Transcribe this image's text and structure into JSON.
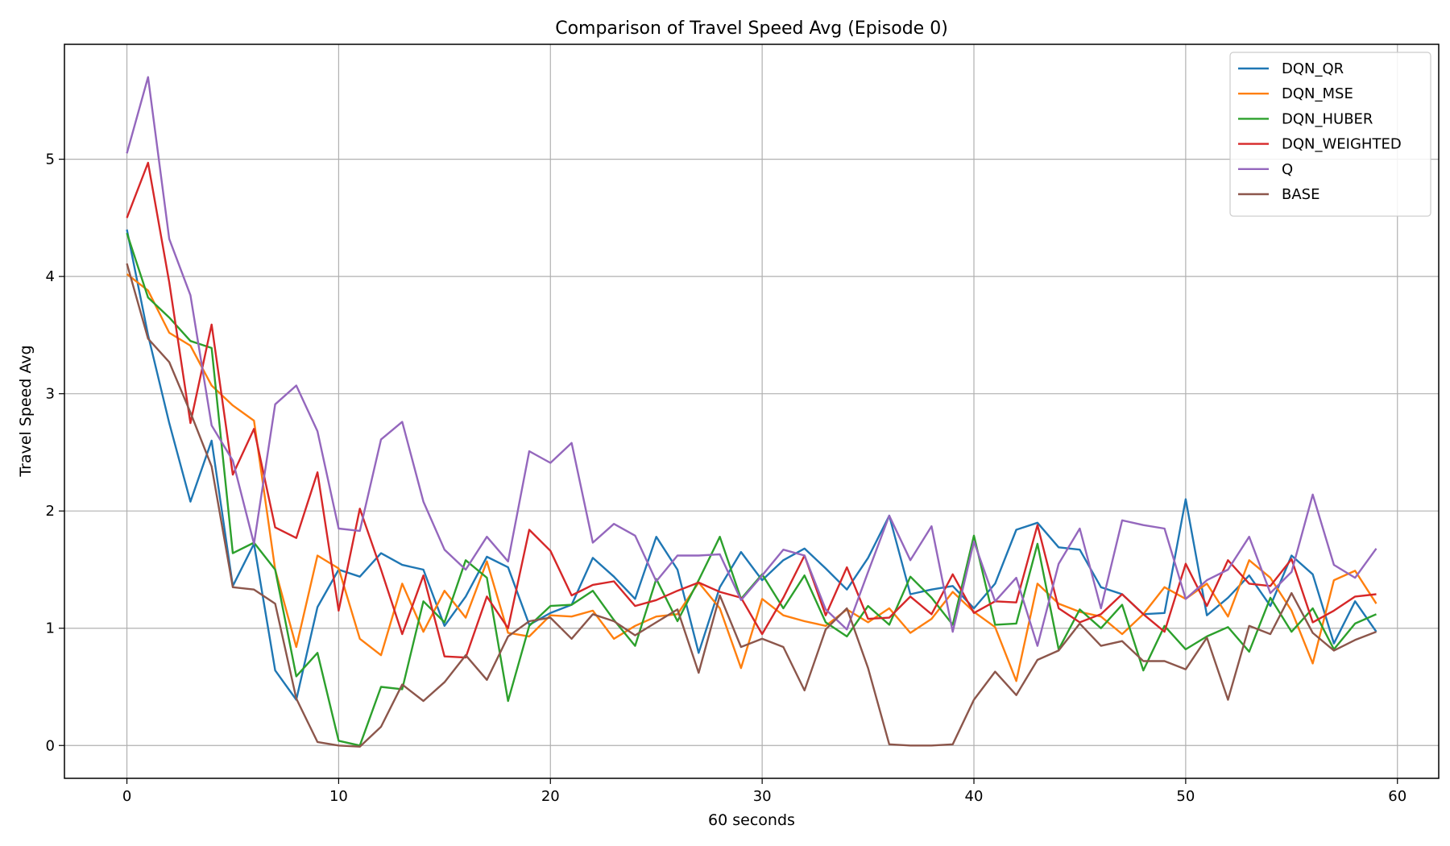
{
  "chart_data": {
    "type": "line",
    "title": "Comparison of Travel Speed Avg (Episode 0)",
    "xlabel": "60 seconds",
    "ylabel": "Travel Speed Avg",
    "xlim": [
      -2.95,
      61.95
    ],
    "ylim": [
      -0.28,
      5.98
    ],
    "xticks": [
      0,
      10,
      20,
      30,
      40,
      50,
      60
    ],
    "yticks": [
      0,
      1,
      2,
      3,
      4,
      5
    ],
    "grid": true,
    "legend_position": "top-right",
    "x": [
      0,
      1,
      2,
      3,
      4,
      5,
      6,
      7,
      8,
      9,
      10,
      11,
      12,
      13,
      14,
      15,
      16,
      17,
      18,
      19,
      20,
      21,
      22,
      23,
      24,
      25,
      26,
      27,
      28,
      29,
      30,
      31,
      32,
      33,
      34,
      35,
      36,
      37,
      38,
      39,
      40,
      41,
      42,
      43,
      44,
      45,
      46,
      47,
      48,
      49,
      50,
      51,
      52,
      53,
      54,
      55,
      56,
      57,
      58,
      59
    ],
    "series": [
      {
        "name": "DQN_QR",
        "color": "#1f77b4",
        "values": [
          4.4,
          3.5,
          2.75,
          2.08,
          2.6,
          1.36,
          1.72,
          0.64,
          0.39,
          1.18,
          1.5,
          1.44,
          1.64,
          1.54,
          1.5,
          1.02,
          1.27,
          1.61,
          1.52,
          1.03,
          1.13,
          1.2,
          1.6,
          1.44,
          1.25,
          1.78,
          1.5,
          0.79,
          1.35,
          1.65,
          1.41,
          1.58,
          1.68,
          1.51,
          1.33,
          1.6,
          1.96,
          1.29,
          1.33,
          1.36,
          1.17,
          1.38,
          1.84,
          1.9,
          1.69,
          1.67,
          1.35,
          1.29,
          1.12,
          1.13,
          2.1,
          1.11,
          1.26,
          1.45,
          1.19,
          1.62,
          1.46,
          0.87,
          1.23,
          0.97
        ]
      },
      {
        "name": "DQN_MSE",
        "color": "#ff7f0e",
        "values": [
          4.02,
          3.88,
          3.52,
          3.41,
          3.07,
          2.9,
          2.77,
          1.5,
          0.84,
          1.62,
          1.51,
          0.91,
          0.77,
          1.38,
          0.97,
          1.32,
          1.09,
          1.57,
          0.96,
          0.93,
          1.11,
          1.1,
          1.15,
          0.91,
          1.02,
          1.1,
          1.12,
          1.39,
          1.17,
          0.66,
          1.25,
          1.11,
          1.06,
          1.02,
          1.16,
          1.05,
          1.17,
          0.96,
          1.08,
          1.31,
          1.14,
          1.01,
          0.55,
          1.38,
          1.21,
          1.14,
          1.1,
          0.95,
          1.12,
          1.35,
          1.25,
          1.38,
          1.1,
          1.58,
          1.43,
          1.15,
          0.7,
          1.41,
          1.49,
          1.21
        ]
      },
      {
        "name": "DQN_HUBER",
        "color": "#2ca02c",
        "values": [
          4.37,
          3.82,
          3.65,
          3.45,
          3.39,
          1.64,
          1.73,
          1.5,
          0.59,
          0.79,
          0.04,
          0.0,
          0.5,
          0.48,
          1.23,
          1.05,
          1.58,
          1.43,
          0.38,
          1.02,
          1.19,
          1.2,
          1.32,
          1.07,
          0.85,
          1.42,
          1.06,
          1.41,
          1.78,
          1.25,
          1.46,
          1.17,
          1.45,
          1.05,
          0.93,
          1.19,
          1.03,
          1.44,
          1.26,
          1.03,
          1.79,
          1.03,
          1.04,
          1.72,
          0.82,
          1.16,
          1.0,
          1.2,
          0.64,
          1.02,
          0.82,
          0.93,
          1.01,
          0.8,
          1.26,
          0.97,
          1.17,
          0.82,
          1.04,
          1.12
        ]
      },
      {
        "name": "DQN_WEIGHTED",
        "color": "#d62728",
        "values": [
          4.5,
          4.97,
          3.95,
          2.75,
          3.59,
          2.31,
          2.7,
          1.86,
          1.77,
          2.33,
          1.15,
          2.02,
          1.5,
          0.95,
          1.45,
          0.76,
          0.75,
          1.27,
          1.0,
          1.84,
          1.66,
          1.28,
          1.37,
          1.4,
          1.19,
          1.24,
          1.32,
          1.39,
          1.31,
          1.26,
          0.95,
          1.26,
          1.62,
          1.11,
          1.52,
          1.08,
          1.09,
          1.27,
          1.12,
          1.46,
          1.13,
          1.23,
          1.22,
          1.88,
          1.17,
          1.05,
          1.12,
          1.29,
          1.12,
          0.97,
          1.55,
          1.19,
          1.58,
          1.38,
          1.36,
          1.59,
          1.05,
          1.15,
          1.27,
          1.29
        ]
      },
      {
        "name": "Q",
        "color": "#9467bd",
        "values": [
          5.05,
          5.7,
          4.32,
          3.84,
          2.73,
          2.43,
          1.72,
          2.91,
          3.07,
          2.68,
          1.85,
          1.83,
          2.61,
          2.76,
          2.08,
          1.67,
          1.5,
          1.78,
          1.57,
          2.51,
          2.41,
          2.58,
          1.73,
          1.89,
          1.79,
          1.4,
          1.62,
          1.62,
          1.63,
          1.24,
          1.45,
          1.67,
          1.62,
          1.16,
          0.99,
          1.48,
          1.96,
          1.58,
          1.87,
          0.97,
          1.74,
          1.23,
          1.43,
          0.85,
          1.55,
          1.85,
          1.17,
          1.92,
          1.88,
          1.85,
          1.25,
          1.41,
          1.5,
          1.78,
          1.3,
          1.48,
          2.14,
          1.54,
          1.43,
          1.68
        ]
      },
      {
        "name": "BASE",
        "color": "#8c564b",
        "values": [
          4.11,
          3.47,
          3.27,
          2.84,
          2.38,
          1.35,
          1.33,
          1.21,
          0.4,
          0.03,
          0.0,
          -0.01,
          0.16,
          0.52,
          0.38,
          0.54,
          0.77,
          0.56,
          0.93,
          1.06,
          1.09,
          0.91,
          1.12,
          1.06,
          0.94,
          1.05,
          1.16,
          0.62,
          1.28,
          0.84,
          0.91,
          0.84,
          0.47,
          0.99,
          1.17,
          0.66,
          0.01,
          0.0,
          0.0,
          0.01,
          0.39,
          0.63,
          0.43,
          0.73,
          0.81,
          1.04,
          0.85,
          0.89,
          0.72,
          0.72,
          0.65,
          0.92,
          0.39,
          1.02,
          0.95,
          1.3,
          0.96,
          0.81,
          0.9,
          0.97
        ]
      }
    ]
  }
}
